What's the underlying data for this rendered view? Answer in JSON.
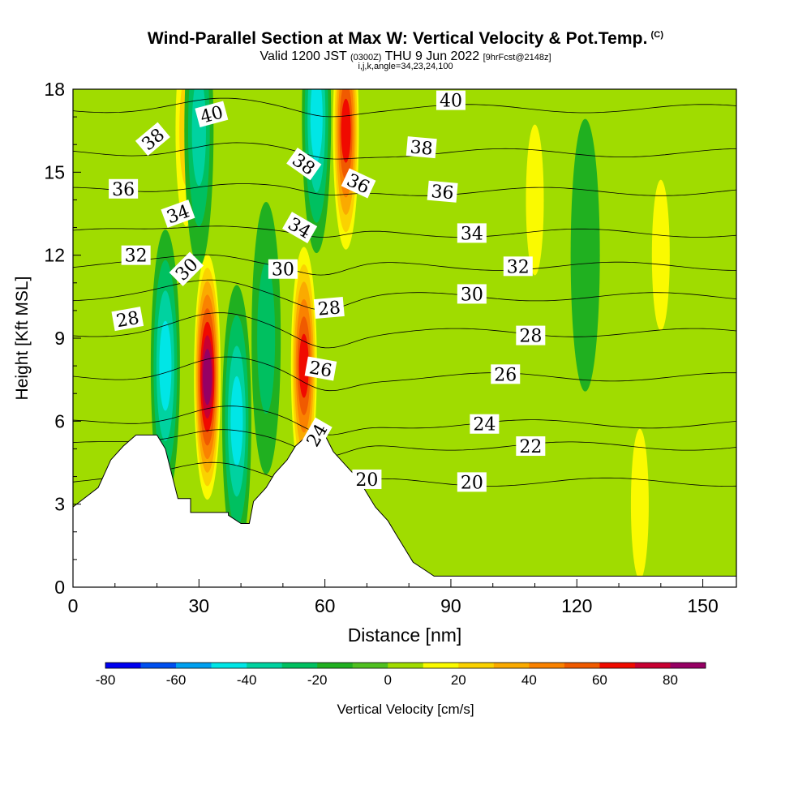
{
  "header": {
    "title": "Wind-Parallel Section at Max W: Vertical Velocity & Pot.Temp.",
    "copyright_mark": "(C)",
    "valid_prefix": "Valid 1200 JST",
    "valid_utc": "(0300Z)",
    "valid_date": "THU 9 Jun 2022",
    "forecast_tag": "[9hrFcst@2148z]",
    "section_params": "i,j,k,angle=34,23,24,100"
  },
  "chart_data": {
    "type": "heatmap",
    "title": "Wind-Parallel Section at Max W: Vertical Velocity & Pot.Temp.",
    "xlabel": "Distance [nm]",
    "ylabel": "Height [Kft MSL]",
    "xlim": [
      0,
      158
    ],
    "ylim": [
      0,
      18
    ],
    "x_ticks": [
      "0",
      "30",
      "60",
      "90",
      "120",
      "150"
    ],
    "x_tick_values": [
      0,
      30,
      60,
      90,
      120,
      150
    ],
    "y_ticks": [
      "0",
      "3",
      "6",
      "9",
      "12",
      "15",
      "18"
    ],
    "y_tick_values": [
      0,
      3,
      6,
      9,
      12,
      15,
      18
    ],
    "colorbar": {
      "label": "Vertical Velocity [cm/s]",
      "tick_labels": [
        "-80",
        "-60",
        "-40",
        "-20",
        "0",
        "20",
        "40",
        "60",
        "80"
      ],
      "tick_values": [
        -80,
        -60,
        -40,
        -20,
        0,
        20,
        40,
        60,
        80
      ],
      "bounds": [
        -80,
        90
      ],
      "step": 10,
      "colors": [
        "#0000f0",
        "#0050f0",
        "#00a0f0",
        "#00e6e6",
        "#00d2a0",
        "#00c060",
        "#20b020",
        "#50c020",
        "#a0dc00",
        "#fafa00",
        "#fad200",
        "#faaa00",
        "#fa8200",
        "#f05a00",
        "#f00a00",
        "#c80032",
        "#960064"
      ]
    },
    "vertical_velocity_cores": [
      {
        "x": 32,
        "y": 7.6,
        "value": 80
      },
      {
        "x": 55,
        "y": 8.0,
        "value": 60
      },
      {
        "x": 27,
        "y": 16.5,
        "value": 20
      },
      {
        "x": 65,
        "y": 16.5,
        "value": 60
      },
      {
        "x": 22,
        "y": 8.0,
        "value": -40
      },
      {
        "x": 39,
        "y": 6.0,
        "value": -40
      },
      {
        "x": 46,
        "y": 9.0,
        "value": -20
      },
      {
        "x": 58,
        "y": 17.0,
        "value": -40
      },
      {
        "x": 30,
        "y": 16.5,
        "value": -30
      },
      {
        "x": 110,
        "y": 14.0,
        "value": 10
      },
      {
        "x": 140,
        "y": 12.0,
        "value": 10
      },
      {
        "x": 135,
        "y": 3.0,
        "value": 10
      },
      {
        "x": 122,
        "y": 12.0,
        "value": -10
      }
    ],
    "potential_temperature_isentropes": [
      {
        "label": "20",
        "height": 3.8
      },
      {
        "label": "22",
        "height": 5.1
      },
      {
        "label": "24",
        "height": 5.9
      },
      {
        "label": "26",
        "height": 7.6
      },
      {
        "label": "28",
        "height": 9.2
      },
      {
        "label": "30",
        "height": 10.5
      },
      {
        "label": "32",
        "height": 11.6
      },
      {
        "label": "34",
        "height": 12.8
      },
      {
        "label": "36",
        "height": 14.3
      },
      {
        "label": "38",
        "height": 15.7
      },
      {
        "label": "40",
        "height": 17.3
      }
    ],
    "contour_labels": [
      {
        "text": "40",
        "x": 33,
        "y": 17.1,
        "angle": -15
      },
      {
        "text": "40",
        "x": 90,
        "y": 17.6,
        "angle": 0
      },
      {
        "text": "38",
        "x": 19,
        "y": 16.2,
        "angle": -40
      },
      {
        "text": "38",
        "x": 83,
        "y": 15.9,
        "angle": 5
      },
      {
        "text": "38",
        "x": 55,
        "y": 15.3,
        "angle": 35
      },
      {
        "text": "36",
        "x": 12,
        "y": 14.4,
        "angle": 0
      },
      {
        "text": "36",
        "x": 68,
        "y": 14.6,
        "angle": 25
      },
      {
        "text": "36",
        "x": 88,
        "y": 14.3,
        "angle": 5
      },
      {
        "text": "34",
        "x": 25,
        "y": 13.5,
        "angle": -20
      },
      {
        "text": "34",
        "x": 54,
        "y": 13.0,
        "angle": 30
      },
      {
        "text": "34",
        "x": 95,
        "y": 12.8,
        "angle": 0
      },
      {
        "text": "32",
        "x": 15,
        "y": 12.0,
        "angle": 0
      },
      {
        "text": "32",
        "x": 106,
        "y": 11.6,
        "angle": 0
      },
      {
        "text": "30",
        "x": 27,
        "y": 11.5,
        "angle": -45
      },
      {
        "text": "30",
        "x": 50,
        "y": 11.5,
        "angle": 0
      },
      {
        "text": "30",
        "x": 95,
        "y": 10.6,
        "angle": 0
      },
      {
        "text": "28",
        "x": 13,
        "y": 9.7,
        "angle": -10
      },
      {
        "text": "28",
        "x": 61,
        "y": 10.1,
        "angle": -5
      },
      {
        "text": "28",
        "x": 109,
        "y": 9.1,
        "angle": 0
      },
      {
        "text": "26",
        "x": 59,
        "y": 7.9,
        "angle": 10
      },
      {
        "text": "26",
        "x": 103,
        "y": 7.7,
        "angle": 0
      },
      {
        "text": "24",
        "x": 58,
        "y": 5.5,
        "angle": -60
      },
      {
        "text": "24",
        "x": 98,
        "y": 5.9,
        "angle": 0
      },
      {
        "text": "22",
        "x": 109,
        "y": 5.1,
        "angle": 0
      },
      {
        "text": "20",
        "x": 70,
        "y": 3.9,
        "angle": 0
      },
      {
        "text": "20",
        "x": 95,
        "y": 3.8,
        "angle": 0
      }
    ],
    "terrain_profile": [
      [
        0,
        2.9
      ],
      [
        6,
        3.6
      ],
      [
        9,
        4.6
      ],
      [
        12,
        5.1
      ],
      [
        15,
        5.5
      ],
      [
        20,
        5.5
      ],
      [
        22,
        5.0
      ],
      [
        25,
        3.2
      ],
      [
        28,
        3.2
      ],
      [
        28,
        2.7
      ],
      [
        34,
        2.7
      ],
      [
        37,
        2.7
      ],
      [
        37,
        2.6
      ],
      [
        40,
        2.3
      ],
      [
        42,
        2.3
      ],
      [
        43,
        3.1
      ],
      [
        46,
        3.6
      ],
      [
        48,
        4.1
      ],
      [
        51,
        4.6
      ],
      [
        53,
        5.1
      ],
      [
        56,
        5.5
      ],
      [
        60,
        5.5
      ],
      [
        62,
        4.9
      ],
      [
        65,
        4.4
      ],
      [
        68,
        3.9
      ],
      [
        70,
        3.4
      ],
      [
        72,
        2.9
      ],
      [
        75,
        2.4
      ],
      [
        77,
        1.9
      ],
      [
        79,
        1.4
      ],
      [
        81,
        0.9
      ],
      [
        84,
        0.6
      ],
      [
        86,
        0.4
      ],
      [
        158,
        0.4
      ]
    ]
  }
}
